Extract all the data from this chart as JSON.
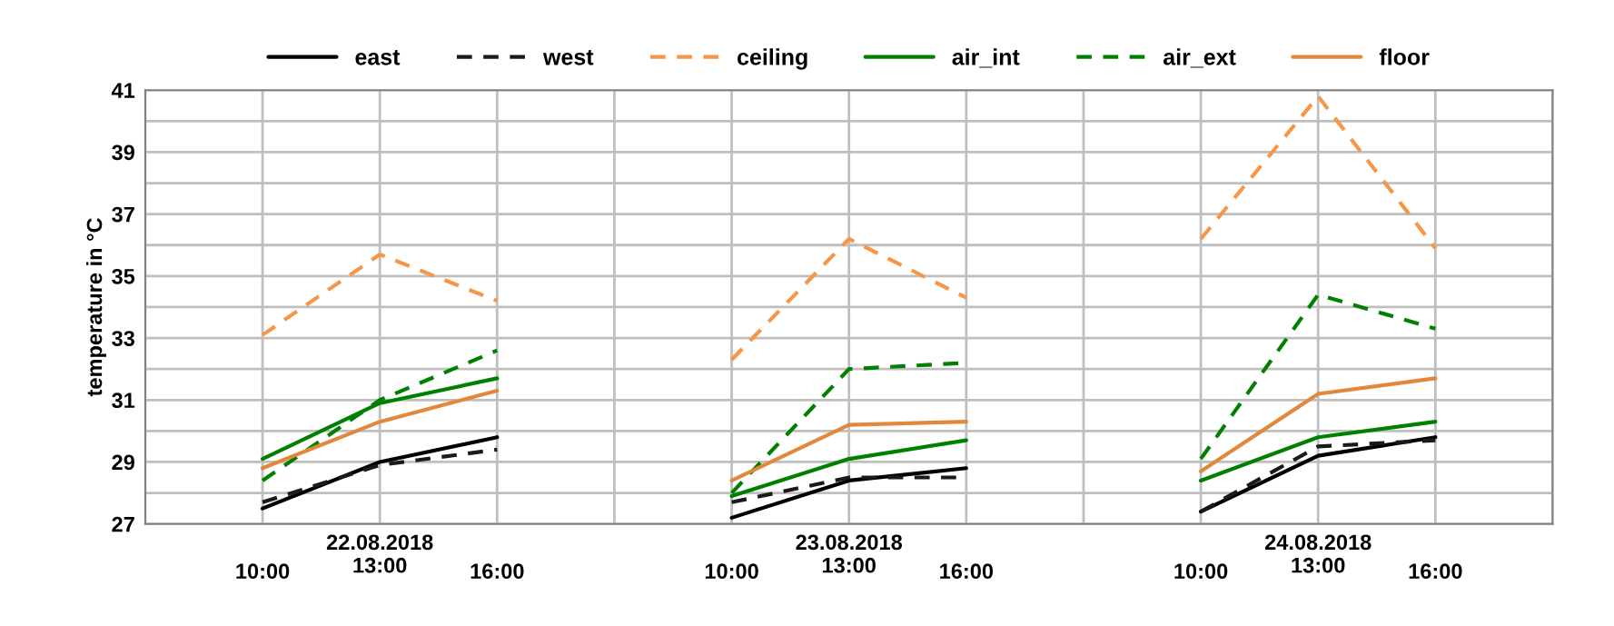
{
  "chart_data": {
    "type": "line",
    "ylabel": "temperature in °C",
    "categories": [
      null,
      "10:00",
      "22.08.2018\n13:00",
      "16:00",
      null,
      "10:00",
      "23.08.2018\n13:00",
      "16:00",
      null,
      "10:00",
      "24.08.2018\n13:00",
      "16:00",
      null
    ],
    "series": [
      {
        "name": "east",
        "color": "#000000",
        "line_style": "solid",
        "values": [
          null,
          27.5,
          29.0,
          29.8,
          null,
          27.2,
          28.4,
          28.8,
          null,
          27.4,
          29.2,
          29.8,
          null
        ]
      },
      {
        "name": "west",
        "color": "#1a1a1a",
        "line_style": "dashed",
        "values": [
          null,
          27.7,
          28.9,
          29.4,
          null,
          27.7,
          28.5,
          28.5,
          null,
          27.4,
          29.5,
          29.7,
          null
        ]
      },
      {
        "name": "ceiling",
        "color": "#f79646",
        "line_style": "dashed",
        "values": [
          null,
          33.1,
          35.7,
          34.2,
          null,
          32.3,
          36.2,
          34.3,
          null,
          36.2,
          40.8,
          35.9,
          null
        ]
      },
      {
        "name": "air_int",
        "color": "#008000",
        "line_style": "solid",
        "values": [
          null,
          29.1,
          30.9,
          31.7,
          null,
          27.9,
          29.1,
          29.7,
          null,
          28.4,
          29.8,
          30.3,
          null
        ]
      },
      {
        "name": "air_ext",
        "color": "#008000",
        "line_style": "dashed",
        "values": [
          null,
          28.4,
          31.0,
          32.6,
          null,
          28.0,
          32.0,
          32.2,
          null,
          29.1,
          34.4,
          33.3,
          null
        ]
      },
      {
        "name": "floor",
        "color": "#e2883c",
        "line_style": "solid",
        "values": [
          null,
          28.8,
          30.3,
          31.3,
          null,
          28.4,
          30.2,
          30.3,
          null,
          28.7,
          31.2,
          31.7,
          null
        ]
      }
    ],
    "ylim": [
      27,
      41
    ],
    "yticks": [
      27,
      {
        "value": 28,
        "label": null
      },
      29,
      {
        "value": 30,
        "label": null
      },
      31,
      {
        "value": 32,
        "label": null
      },
      33,
      {
        "value": 34,
        "label": null
      },
      35,
      {
        "value": 36,
        "label": null
      },
      37,
      {
        "value": 38,
        "label": null
      },
      39,
      {
        "value": 40,
        "label": null
      },
      41
    ],
    "grid": true,
    "legend": "top",
    "marker": "none"
  }
}
